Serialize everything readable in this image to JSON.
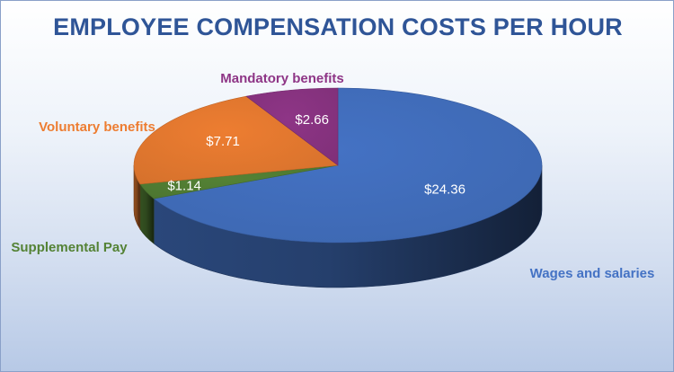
{
  "chart_data": {
    "type": "pie",
    "title": "EMPLOYEE COMPENSATION COSTS PER HOUR",
    "slices": [
      {
        "category": "Wages and salaries",
        "value": 24.36,
        "label": "$24.36",
        "color": "#4472c4"
      },
      {
        "category": "Supplemental Pay",
        "value": 1.14,
        "label": "$1.14",
        "color": "#548235"
      },
      {
        "category": "Voluntary benefits",
        "value": 7.71,
        "label": "$7.71",
        "color": "#ed7d31"
      },
      {
        "category": "Mandatory benefits",
        "value": 2.66,
        "label": "$2.66",
        "color": "#8e3586"
      }
    ],
    "category_label_colors": {
      "Wages and salaries": "#4472c4",
      "Supplemental Pay": "#548235",
      "Voluntary benefits": "#ed7d31",
      "Mandatory benefits": "#8e3586"
    },
    "legend": "none",
    "style": "3d-pie"
  }
}
